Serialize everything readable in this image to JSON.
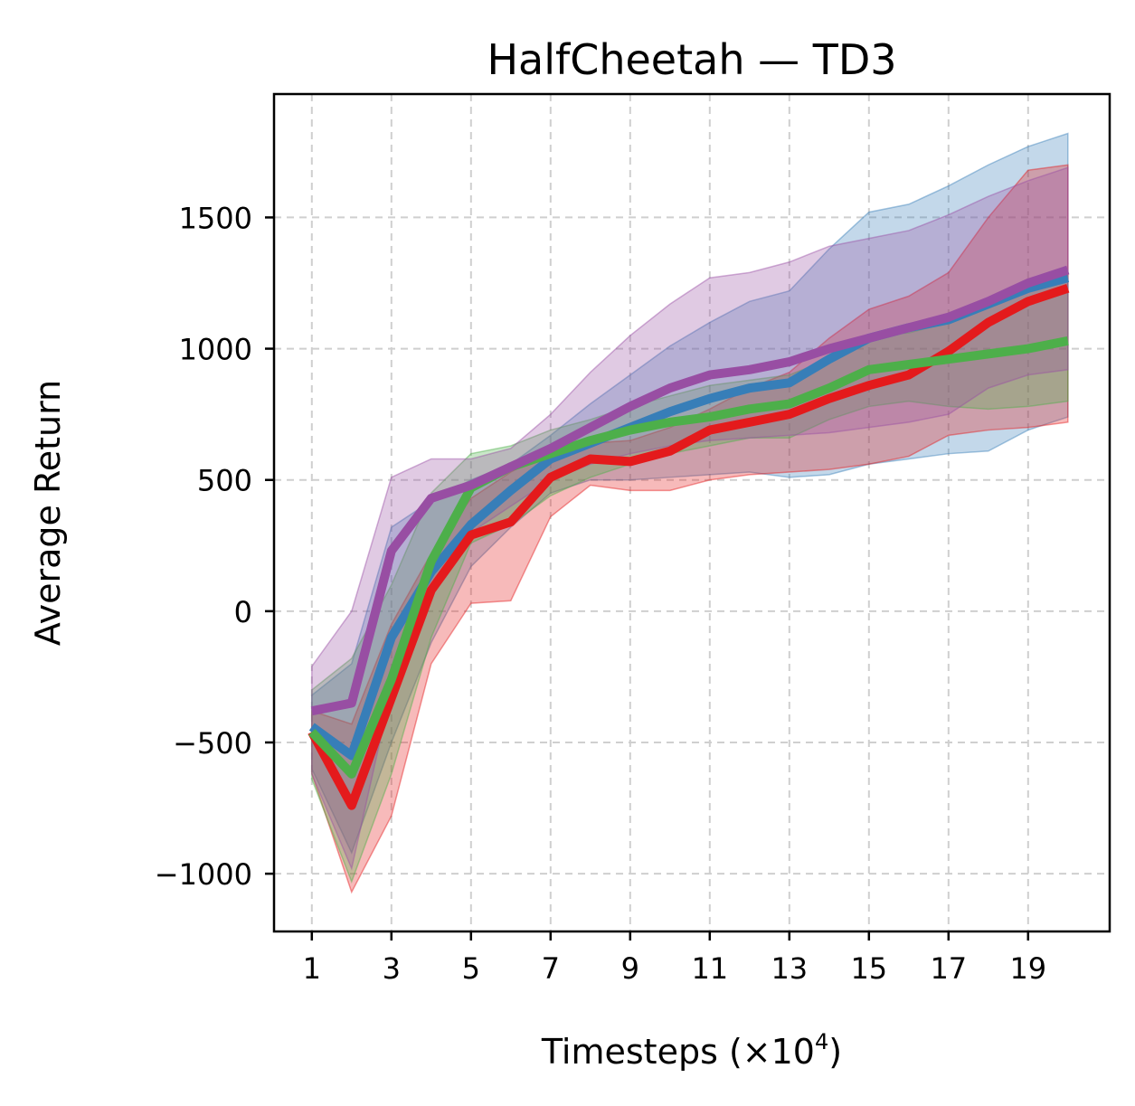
{
  "chart_data": {
    "type": "line",
    "title": "HalfCheetah — TD3",
    "xlabel_main": "Timesteps (×10",
    "xlabel_sup": "4",
    "xlabel_end": ")",
    "ylabel": "Average Return",
    "xlim": [
      0.05,
      21.05
    ],
    "ylim": [
      -1220,
      1970
    ],
    "xticks": [
      1,
      3,
      5,
      7,
      9,
      11,
      13,
      15,
      17,
      19
    ],
    "xtick_labels": [
      "1",
      "3",
      "5",
      "7",
      "9",
      "11",
      "13",
      "15",
      "17",
      "19"
    ],
    "yticks": [
      -1000,
      -500,
      0,
      500,
      1000,
      1500
    ],
    "ytick_labels": [
      "−1000",
      "−500",
      "0",
      "500",
      "1000",
      "1500"
    ],
    "grid": true,
    "x": [
      1,
      2,
      3,
      4,
      5,
      6,
      7,
      8,
      9,
      10,
      11,
      12,
      13,
      14,
      15,
      16,
      17,
      18,
      19,
      20
    ],
    "series": [
      {
        "name": "blue",
        "color": "#377eb8",
        "values": [
          -440,
          -550,
          -100,
          150,
          330,
          460,
          580,
          640,
          700,
          760,
          810,
          850,
          870,
          960,
          1040,
          1080,
          1110,
          1170,
          1230,
          1270
        ],
        "lower": [
          -600,
          -920,
          -500,
          -120,
          170,
          320,
          450,
          500,
          500,
          510,
          520,
          530,
          510,
          520,
          560,
          580,
          600,
          610,
          690,
          740
        ],
        "upper": [
          -320,
          -200,
          320,
          420,
          500,
          560,
          670,
          790,
          900,
          1010,
          1100,
          1180,
          1220,
          1380,
          1520,
          1550,
          1620,
          1700,
          1770,
          1820
        ]
      },
      {
        "name": "red",
        "color": "#e41a1c",
        "values": [
          -460,
          -740,
          -330,
          80,
          290,
          340,
          510,
          580,
          570,
          610,
          690,
          720,
          750,
          810,
          860,
          900,
          990,
          1100,
          1180,
          1230
        ],
        "lower": [
          -620,
          -1070,
          -780,
          -200,
          30,
          40,
          360,
          480,
          460,
          460,
          500,
          520,
          530,
          540,
          560,
          590,
          670,
          690,
          700,
          720
        ],
        "upper": [
          -380,
          -430,
          -50,
          220,
          430,
          530,
          610,
          640,
          650,
          700,
          770,
          850,
          910,
          1040,
          1150,
          1200,
          1290,
          1500,
          1680,
          1700
        ]
      },
      {
        "name": "green",
        "color": "#4daf4a",
        "values": [
          -460,
          -620,
          -260,
          190,
          470,
          550,
          600,
          650,
          690,
          720,
          740,
          770,
          790,
          850,
          920,
          940,
          960,
          980,
          1000,
          1030
        ],
        "lower": [
          -640,
          -1030,
          -620,
          -100,
          260,
          330,
          440,
          510,
          560,
          600,
          630,
          660,
          660,
          730,
          780,
          800,
          780,
          770,
          780,
          800
        ],
        "upper": [
          -300,
          -180,
          100,
          450,
          600,
          630,
          690,
          730,
          780,
          820,
          860,
          880,
          900,
          960,
          1050,
          1060,
          1100,
          1160,
          1220,
          1280
        ]
      },
      {
        "name": "purple",
        "color": "#984ea3",
        "values": [
          -380,
          -350,
          230,
          430,
          480,
          550,
          620,
          700,
          780,
          850,
          900,
          920,
          950,
          1000,
          1040,
          1080,
          1120,
          1180,
          1250,
          1300
        ],
        "lower": [
          -620,
          -980,
          -300,
          60,
          300,
          400,
          500,
          560,
          600,
          630,
          650,
          660,
          670,
          680,
          700,
          720,
          750,
          850,
          900,
          920
        ],
        "upper": [
          -210,
          0,
          510,
          580,
          580,
          620,
          750,
          910,
          1050,
          1170,
          1270,
          1290,
          1330,
          1390,
          1420,
          1450,
          1510,
          1580,
          1640,
          1690
        ]
      }
    ]
  }
}
